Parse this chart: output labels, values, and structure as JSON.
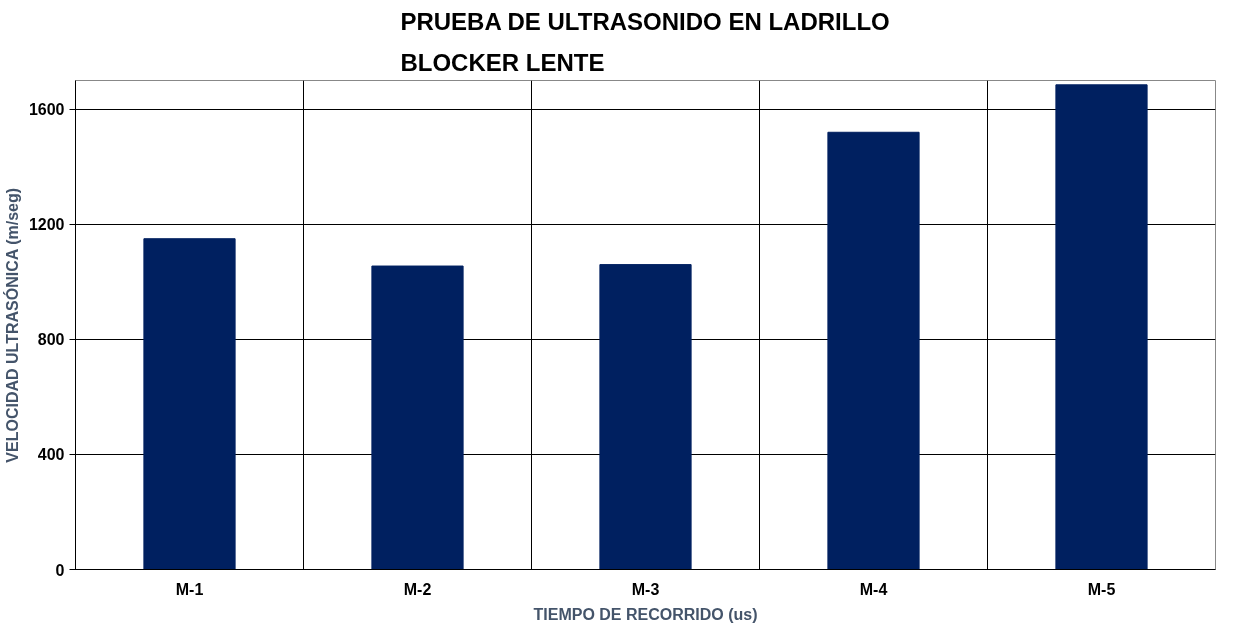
{
  "chart_data": {
    "type": "bar",
    "title": "PRUEBA DE ULTRASONIDO EN LADRILLO\nBLOCKER LENTE",
    "xlabel": "TIEMPO DE RECORRIDO (us)",
    "ylabel": "VELOCIDAD ULTRASÓNICA (m/seg)",
    "categories": [
      "M-1",
      "M-2",
      "M-3",
      "M-4",
      "M-5"
    ],
    "values": [
      1150,
      1055,
      1060,
      1520,
      1685
    ],
    "color": "#002060",
    "ylim": [
      0,
      1700
    ],
    "yticks": [
      0,
      400,
      800,
      1200,
      1600
    ],
    "grid": true
  }
}
